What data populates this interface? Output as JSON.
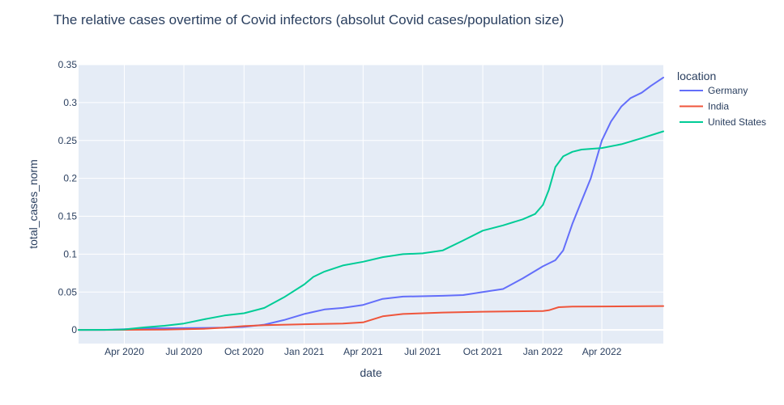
{
  "chart_data": {
    "type": "line",
    "title": "The relative cases overtime of Covid infectors (absolut Covid cases/population size)",
    "xlabel": "date",
    "ylabel": "total_cases_norm",
    "x_ticks": [
      "Apr 2020",
      "Jul 2020",
      "Oct 2020",
      "Jan 2021",
      "Apr 2021",
      "Jul 2021",
      "Oct 2021",
      "Jan 2022",
      "Apr 2022"
    ],
    "y_ticks": [
      "0",
      "0.05",
      "0.1",
      "0.15",
      "0.2",
      "0.25",
      "0.3",
      "0.35"
    ],
    "xlim": [
      "2020-01-22",
      "2022-07-04"
    ],
    "ylim": [
      -0.018,
      0.35
    ],
    "grid": true,
    "legend": {
      "title": "location",
      "placement": "right"
    },
    "series": [
      {
        "name": "Germany",
        "color": "#636efa",
        "points": [
          [
            "2020-01-22",
            0.0
          ],
          [
            "2020-03-01",
            0.0
          ],
          [
            "2020-04-01",
            0.001
          ],
          [
            "2020-05-01",
            0.002
          ],
          [
            "2020-07-01",
            0.0024
          ],
          [
            "2020-09-01",
            0.003
          ],
          [
            "2020-10-01",
            0.004
          ],
          [
            "2020-11-01",
            0.007
          ],
          [
            "2020-12-01",
            0.013
          ],
          [
            "2021-01-01",
            0.021
          ],
          [
            "2021-02-01",
            0.027
          ],
          [
            "2021-03-01",
            0.029
          ],
          [
            "2021-04-01",
            0.033
          ],
          [
            "2021-05-01",
            0.041
          ],
          [
            "2021-06-01",
            0.044
          ],
          [
            "2021-08-01",
            0.045
          ],
          [
            "2021-09-01",
            0.046
          ],
          [
            "2021-10-01",
            0.05
          ],
          [
            "2021-11-01",
            0.054
          ],
          [
            "2021-12-01",
            0.068
          ],
          [
            "2022-01-01",
            0.084
          ],
          [
            "2022-01-20",
            0.092
          ],
          [
            "2022-02-01",
            0.105
          ],
          [
            "2022-02-15",
            0.14
          ],
          [
            "2022-03-01",
            0.17
          ],
          [
            "2022-03-15",
            0.2
          ],
          [
            "2022-04-01",
            0.25
          ],
          [
            "2022-04-15",
            0.275
          ],
          [
            "2022-05-01",
            0.295
          ],
          [
            "2022-05-15",
            0.306
          ],
          [
            "2022-06-01",
            0.313
          ],
          [
            "2022-06-15",
            0.322
          ],
          [
            "2022-07-04",
            0.333
          ]
        ]
      },
      {
        "name": "India",
        "color": "#ef553b",
        "points": [
          [
            "2020-01-22",
            0.0
          ],
          [
            "2020-03-01",
            0.0
          ],
          [
            "2020-06-01",
            0.0003
          ],
          [
            "2020-08-01",
            0.0015
          ],
          [
            "2020-09-01",
            0.003
          ],
          [
            "2020-10-01",
            0.005
          ],
          [
            "2020-11-01",
            0.0063
          ],
          [
            "2021-01-01",
            0.0075
          ],
          [
            "2021-03-01",
            0.0083
          ],
          [
            "2021-04-01",
            0.01
          ],
          [
            "2021-05-01",
            0.018
          ],
          [
            "2021-06-01",
            0.021
          ],
          [
            "2021-08-01",
            0.023
          ],
          [
            "2021-10-01",
            0.024
          ],
          [
            "2022-01-01",
            0.025
          ],
          [
            "2022-01-10",
            0.026
          ],
          [
            "2022-01-25",
            0.03
          ],
          [
            "2022-02-15",
            0.0308
          ],
          [
            "2022-04-01",
            0.031
          ],
          [
            "2022-07-04",
            0.0315
          ]
        ]
      },
      {
        "name": "United States",
        "color": "#00cc96",
        "points": [
          [
            "2020-01-22",
            0.0
          ],
          [
            "2020-03-15",
            0.0002
          ],
          [
            "2020-04-01",
            0.0007
          ],
          [
            "2020-05-01",
            0.0033
          ],
          [
            "2020-06-01",
            0.0055
          ],
          [
            "2020-07-01",
            0.0085
          ],
          [
            "2020-08-01",
            0.014
          ],
          [
            "2020-09-01",
            0.019
          ],
          [
            "2020-10-01",
            0.022
          ],
          [
            "2020-11-01",
            0.029
          ],
          [
            "2020-12-01",
            0.043
          ],
          [
            "2021-01-01",
            0.06
          ],
          [
            "2021-01-15",
            0.07
          ],
          [
            "2021-02-01",
            0.077
          ],
          [
            "2021-03-01",
            0.085
          ],
          [
            "2021-04-01",
            0.09
          ],
          [
            "2021-05-01",
            0.096
          ],
          [
            "2021-06-01",
            0.1
          ],
          [
            "2021-07-01",
            0.101
          ],
          [
            "2021-08-01",
            0.105
          ],
          [
            "2021-09-01",
            0.118
          ],
          [
            "2021-10-01",
            0.131
          ],
          [
            "2021-11-01",
            0.138
          ],
          [
            "2021-12-01",
            0.146
          ],
          [
            "2021-12-20",
            0.153
          ],
          [
            "2022-01-01",
            0.165
          ],
          [
            "2022-01-10",
            0.185
          ],
          [
            "2022-01-20",
            0.215
          ],
          [
            "2022-02-01",
            0.229
          ],
          [
            "2022-02-15",
            0.235
          ],
          [
            "2022-03-01",
            0.238
          ],
          [
            "2022-04-01",
            0.24
          ],
          [
            "2022-05-01",
            0.245
          ],
          [
            "2022-06-01",
            0.253
          ],
          [
            "2022-07-04",
            0.262
          ]
        ]
      }
    ]
  }
}
